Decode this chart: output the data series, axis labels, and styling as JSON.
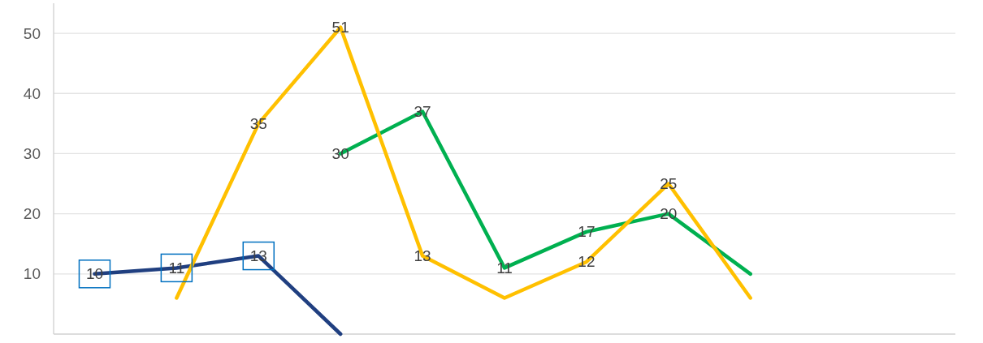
{
  "chart_data": {
    "type": "line",
    "categories": [
      null,
      null,
      null,
      null,
      null,
      null,
      null,
      null,
      null,
      null,
      null
    ],
    "series": [
      {
        "color": "#203f80",
        "values": [
          10,
          11,
          13,
          0,
          null,
          null,
          null,
          null,
          null,
          null,
          null
        ],
        "value_labels": [
          "10",
          "11",
          "13",
          null,
          null,
          null,
          null,
          null,
          null,
          null,
          null
        ]
      },
      {
        "color": "#00b050",
        "values": [
          null,
          null,
          null,
          30,
          37,
          11,
          17,
          20,
          10,
          null,
          null
        ],
        "value_labels": [
          null,
          null,
          null,
          "30",
          "37",
          "11",
          "17",
          "20",
          null,
          null,
          null
        ]
      },
      {
        "color": "#ffc000",
        "values": [
          null,
          6,
          35,
          51,
          13,
          6,
          12,
          25,
          6,
          null,
          null
        ],
        "value_labels": [
          null,
          null,
          "35",
          "51",
          "13",
          null,
          "12",
          "25",
          null,
          null,
          null
        ]
      }
    ],
    "ylim": [
      0,
      55
    ],
    "yticks": [
      10,
      20,
      30,
      40,
      50
    ],
    "grid": "y",
    "tick_labels": "y"
  }
}
